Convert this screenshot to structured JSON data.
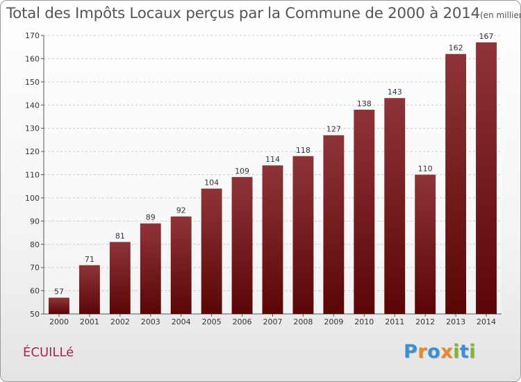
{
  "chart_data": {
    "type": "bar",
    "title": "Total des Impôts Locaux perçus par la Commune de 2000 à 2014",
    "unit_label": "(en milliers d'€)",
    "categories": [
      "2000",
      "2001",
      "2002",
      "2003",
      "2004",
      "2005",
      "2006",
      "2007",
      "2008",
      "2009",
      "2010",
      "2011",
      "2012",
      "2013",
      "2014"
    ],
    "values": [
      57,
      71,
      81,
      89,
      92,
      104,
      109,
      114,
      118,
      127,
      138,
      143,
      110,
      162,
      167
    ],
    "ylim": [
      50,
      170
    ],
    "yticks": [
      50,
      60,
      70,
      80,
      90,
      100,
      110,
      120,
      130,
      140,
      150,
      160,
      170
    ],
    "xlabel": "",
    "ylabel": "",
    "grid": true,
    "bar_color_top": "#8e3438",
    "bar_color_bottom": "#5a0606"
  },
  "commune_name": "ÉCUILLé",
  "logo": {
    "text": "Proxiti",
    "letters": [
      {
        "ch": "P",
        "color": "#3a8fd6"
      },
      {
        "ch": "r",
        "color": "#e8862a"
      },
      {
        "ch": "o",
        "color": "#3a8fd6"
      },
      {
        "ch": "x",
        "color": "#e8862a"
      },
      {
        "ch": "i",
        "color": "#7cb82f"
      },
      {
        "ch": "t",
        "color": "#3a8fd6"
      },
      {
        "ch": "i",
        "color": "#7cb82f"
      }
    ]
  }
}
